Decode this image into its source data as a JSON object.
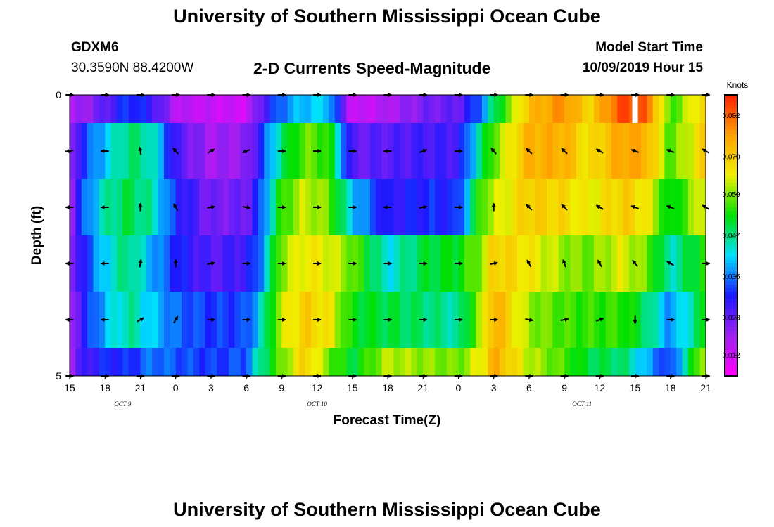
{
  "header": {
    "title_top": "University of Southern Mississippi Ocean Cube",
    "title_bottom": "University of Southern Mississippi Ocean Cube",
    "station_id": "GDXM6",
    "coordinates": "30.3590N 88.4200W",
    "product": "2-D Currents Speed-Magnitude",
    "model_start_label": "Model Start Time",
    "model_start_value": "10/09/2019 Hour 15"
  },
  "chart_data": {
    "type": "heatmap",
    "title": "2-D Currents Speed-Magnitude",
    "xlabel": "Forecast Time(Z)",
    "ylabel": "Depth (ft)",
    "x_tick_labels": [
      "15",
      "18",
      "21",
      "0",
      "3",
      "6",
      "9",
      "12",
      "15",
      "18",
      "21",
      "0",
      "3",
      "6",
      "9",
      "12",
      "15",
      "18",
      "21"
    ],
    "x_range_hours": [
      0,
      54
    ],
    "date_labels": [
      {
        "text": "OCT 9",
        "hour": 4.5
      },
      {
        "text": "OCT 10",
        "hour": 21
      },
      {
        "text": "OCT 11",
        "hour": 43.5
      }
    ],
    "y_tick_labels": [
      "0",
      "5"
    ],
    "ylim_ft": [
      0,
      5
    ],
    "depth_levels_ft": [
      0,
      1,
      2,
      3,
      4,
      5
    ],
    "colorbar": {
      "title": "Knots",
      "ticks": [
        0.012,
        0.023,
        0.035,
        0.047,
        0.059,
        0.07,
        0.082
      ],
      "tick_labels": [
        "0.012",
        "0.023",
        "0.035",
        "0.047",
        "0.059",
        "0.070",
        "0.082"
      ],
      "range": [
        0.006,
        0.088
      ],
      "colors": [
        "#ff00ff",
        "#a020f0",
        "#1a1aff",
        "#00e0ff",
        "#00e000",
        "#f0f000",
        "#ffa000",
        "#ff2000"
      ]
    },
    "speed_key_points": [
      {
        "hour": 0,
        "values": [
          0.015,
          0.016,
          0.017,
          0.017,
          0.016,
          0.018
        ]
      },
      {
        "hour": 1,
        "values": [
          0.018,
          0.03,
          0.032,
          0.028,
          0.027,
          0.025
        ]
      },
      {
        "hour": 3,
        "values": [
          0.023,
          0.04,
          0.045,
          0.041,
          0.039,
          0.03
        ]
      },
      {
        "hour": 5,
        "values": [
          0.032,
          0.048,
          0.05,
          0.048,
          0.046,
          0.03
        ]
      },
      {
        "hour": 7,
        "values": [
          0.027,
          0.045,
          0.045,
          0.038,
          0.04,
          0.035
        ]
      },
      {
        "hour": 9,
        "values": [
          0.015,
          0.025,
          0.03,
          0.03,
          0.034,
          0.033
        ]
      },
      {
        "hour": 12,
        "values": [
          0.013,
          0.017,
          0.021,
          0.024,
          0.031,
          0.031
        ]
      },
      {
        "hour": 15,
        "values": [
          0.012,
          0.019,
          0.022,
          0.027,
          0.032,
          0.033
        ]
      },
      {
        "hour": 16,
        "values": [
          0.022,
          0.027,
          0.03,
          0.033,
          0.04,
          0.045
        ]
      },
      {
        "hour": 18,
        "values": [
          0.035,
          0.048,
          0.055,
          0.06,
          0.063,
          0.058
        ]
      },
      {
        "hour": 20,
        "values": [
          0.04,
          0.058,
          0.063,
          0.066,
          0.07,
          0.07
        ]
      },
      {
        "hour": 22,
        "values": [
          0.04,
          0.055,
          0.058,
          0.064,
          0.066,
          0.058
        ]
      },
      {
        "hour": 24,
        "values": [
          0.012,
          0.023,
          0.04,
          0.058,
          0.052,
          0.05
        ]
      },
      {
        "hour": 27,
        "values": [
          0.016,
          0.024,
          0.027,
          0.042,
          0.05,
          0.062
        ]
      },
      {
        "hour": 30,
        "values": [
          0.021,
          0.026,
          0.03,
          0.05,
          0.048,
          0.06
        ]
      },
      {
        "hour": 33,
        "values": [
          0.023,
          0.026,
          0.03,
          0.052,
          0.045,
          0.058
        ]
      },
      {
        "hour": 35,
        "values": [
          0.035,
          0.048,
          0.058,
          0.06,
          0.062,
          0.065
        ]
      },
      {
        "hour": 36,
        "values": [
          0.048,
          0.058,
          0.062,
          0.07,
          0.075,
          0.075
        ]
      },
      {
        "hour": 39,
        "values": [
          0.072,
          0.074,
          0.07,
          0.066,
          0.06,
          0.062
        ]
      },
      {
        "hour": 42,
        "values": [
          0.078,
          0.074,
          0.068,
          0.06,
          0.056,
          0.056
        ]
      },
      {
        "hour": 44,
        "values": [
          0.068,
          0.066,
          0.064,
          0.058,
          0.055,
          0.05
        ]
      },
      {
        "hour": 47,
        "values": [
          0.085,
          0.076,
          0.07,
          0.064,
          0.055,
          0.048
        ]
      },
      {
        "hour": 49,
        "values": [
          0.082,
          0.074,
          0.066,
          0.058,
          0.048,
          0.038
        ]
      },
      {
        "hour": 51,
        "values": [
          0.055,
          0.056,
          0.05,
          0.044,
          0.036,
          0.03
        ]
      },
      {
        "hour": 54,
        "values": [
          0.07,
          0.07,
          0.066,
          0.055,
          0.052,
          0.065
        ]
      }
    ],
    "missing_cells": [
      {
        "hour": 48,
        "depth_ft": 0
      }
    ],
    "vector_depths_ft": [
      0,
      1,
      2,
      3,
      4,
      5
    ],
    "vector_hours": [
      0,
      3,
      6,
      9,
      12,
      15,
      18,
      21,
      24,
      27,
      30,
      33,
      36,
      39,
      42,
      45,
      48,
      51,
      54
    ],
    "vector_directions_deg": [
      [
        90,
        90,
        90,
        90,
        90,
        90,
        90,
        90,
        90,
        90,
        90,
        90,
        90,
        90,
        90,
        90,
        90,
        90,
        90
      ],
      [
        260,
        270,
        350,
        320,
        60,
        250,
        90,
        90,
        90,
        270,
        70,
        90,
        320,
        315,
        315,
        300,
        290,
        290,
        300
      ],
      [
        270,
        270,
        0,
        330,
        80,
        100,
        90,
        90,
        90,
        270,
        80,
        90,
        0,
        315,
        315,
        300,
        290,
        290,
        300
      ],
      [
        270,
        270,
        10,
        0,
        80,
        90,
        90,
        90,
        90,
        90,
        90,
        90,
        80,
        330,
        340,
        330,
        320,
        300,
        90
      ],
      [
        270,
        270,
        60,
        30,
        90,
        90,
        90,
        90,
        90,
        90,
        90,
        90,
        90,
        100,
        80,
        70,
        180,
        90,
        90
      ],
      [
        90,
        90,
        90,
        90,
        90,
        90,
        90,
        90,
        90,
        90,
        90,
        90,
        90,
        90,
        90,
        90,
        90,
        90,
        90
      ]
    ]
  }
}
